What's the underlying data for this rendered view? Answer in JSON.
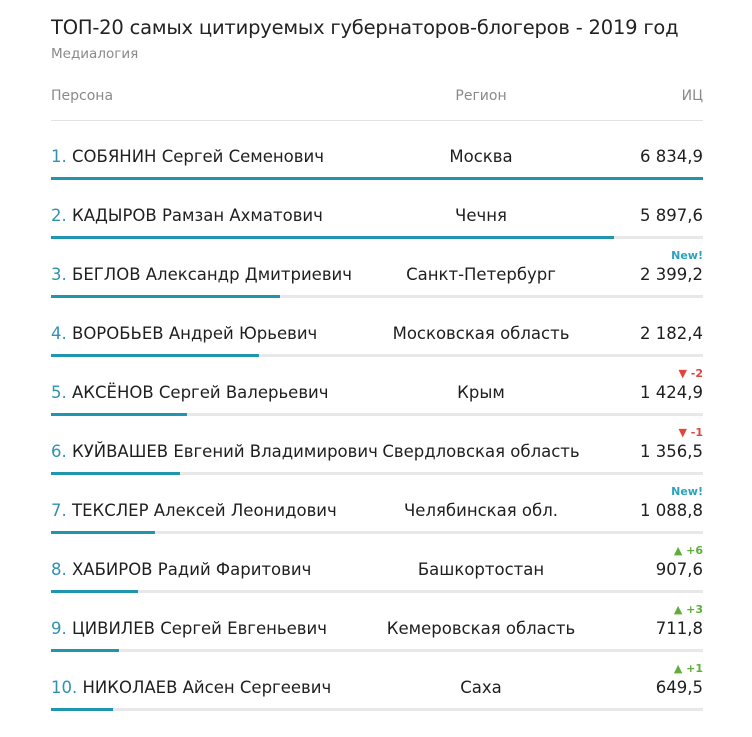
{
  "title": "ТОП-20 самых цитируемых губернаторов-блогеров - 2019 год",
  "subtitle": "Медиалогия",
  "columns": {
    "person": "Персона",
    "region": "Регион",
    "value": "ИЦ"
  },
  "colors": {
    "accent": "#1f96ae",
    "track": "#e8e8e8",
    "up": "#5fae3a",
    "down": "#e0443a",
    "new": "#2aa3c0"
  },
  "chart_data": {
    "type": "bar",
    "title": "ТОП-20 самых цитируемых губернаторов-блогеров - 2019 год",
    "xlabel": "Персона",
    "ylabel": "ИЦ",
    "ylim": [
      0,
      6834.9
    ],
    "rows": [
      {
        "rank": "1.",
        "name": "СОБЯНИН Сергей Семенович",
        "region": "Москва",
        "value_text": "6 834,9",
        "value": 6834.9,
        "badge": "",
        "badge_type": ""
      },
      {
        "rank": "2.",
        "name": "КАДЫРОВ Рамзан Ахматович",
        "region": "Чечня",
        "value_text": "5 897,6",
        "value": 5897.6,
        "badge": "",
        "badge_type": ""
      },
      {
        "rank": "3.",
        "name": "БЕГЛОВ Александр Дмитриевич",
        "region": "Санкт-Петербург",
        "value_text": "2 399,2",
        "value": 2399.2,
        "badge": "New!",
        "badge_type": "new"
      },
      {
        "rank": "4.",
        "name": "ВОРОБЬЕВ Андрей Юрьевич",
        "region": "Московская область",
        "value_text": "2 182,4",
        "value": 2182.4,
        "badge": "",
        "badge_type": ""
      },
      {
        "rank": "5.",
        "name": "АКСЁНОВ Сергей Валерьевич",
        "region": "Крым",
        "value_text": "1 424,9",
        "value": 1424.9,
        "badge": "▼ -2",
        "badge_type": "down"
      },
      {
        "rank": "6.",
        "name": "КУЙВАШЕВ Евгений Владимирович",
        "region": "Свердловская область",
        "value_text": "1 356,5",
        "value": 1356.5,
        "badge": "▼ -1",
        "badge_type": "down"
      },
      {
        "rank": "7.",
        "name": "ТЕКСЛЕР Алексей Леонидович",
        "region": "Челябинская обл.",
        "value_text": "1 088,8",
        "value": 1088.8,
        "badge": "New!",
        "badge_type": "new"
      },
      {
        "rank": "8.",
        "name": "ХАБИРОВ Радий Фаритович",
        "region": "Башкортостан",
        "value_text": "907,6",
        "value": 907.6,
        "badge": "▲ +6",
        "badge_type": "up"
      },
      {
        "rank": "9.",
        "name": "ЦИВИЛЕВ Сергей Евгеньевич",
        "region": "Кемеровская область",
        "value_text": "711,8",
        "value": 711.8,
        "badge": "▲ +3",
        "badge_type": "up"
      },
      {
        "rank": "10.",
        "name": "НИКОЛАЕВ Айсен Сергеевич",
        "region": "Саха",
        "value_text": "649,5",
        "value": 649.5,
        "badge": "▲ +1",
        "badge_type": "up"
      }
    ]
  }
}
